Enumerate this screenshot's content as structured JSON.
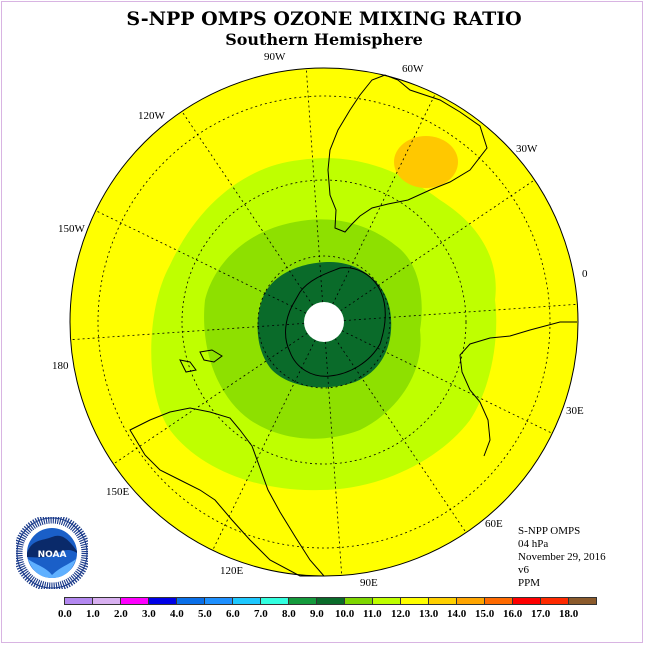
{
  "header": {
    "title": "S-NPP OMPS OZONE MIXING RATIO",
    "subtitle": "Southern Hemisphere"
  },
  "longitude_labels": [
    "90W",
    "60W",
    "30W",
    "0",
    "30E",
    "60E",
    "90E",
    "120E",
    "150E",
    "180",
    "150W",
    "120W"
  ],
  "info": {
    "instrument": "S-NPP OMPS",
    "level": "04 hPa",
    "date": "November 29, 2016",
    "version": "v6",
    "units": "PPM"
  },
  "logo": {
    "text": "NOAA",
    "ring_text": "NATIONAL OCEANIC AND ATMOSPHERIC ADMINISTRATION · U.S. DEPARTMENT OF COMMERCE"
  },
  "colorbar": {
    "colors": [
      "#b388f0",
      "#d8b0f0",
      "#ff00ff",
      "#0000e6",
      "#0a6fe8",
      "#1e90ff",
      "#1ec8ff",
      "#33ffe0",
      "#149a3c",
      "#0a6b2a",
      "#7ed600",
      "#bfff00",
      "#ffff00",
      "#ffd000",
      "#ffa500",
      "#ff6a00",
      "#ff0000",
      "#ff2a00",
      "#8b5a2b"
    ],
    "labels": [
      "0.0",
      "1.0",
      "2.0",
      "3.0",
      "4.0",
      "5.0",
      "6.0",
      "7.0",
      "8.0",
      "9.0",
      "10.0",
      "11.0",
      "12.0",
      "13.0",
      "14.0",
      "15.0",
      "16.0",
      "17.0",
      "18.0"
    ]
  },
  "field_colors": {
    "background": "#ffff00",
    "ring_11_12": "#bfff00",
    "ring_10_11": "#8ee000",
    "core_9_10": "#0a6b2a",
    "pole_hole": "#ffffff",
    "max_13_14": "#ffc800",
    "frame": "#d8b4e2"
  }
}
